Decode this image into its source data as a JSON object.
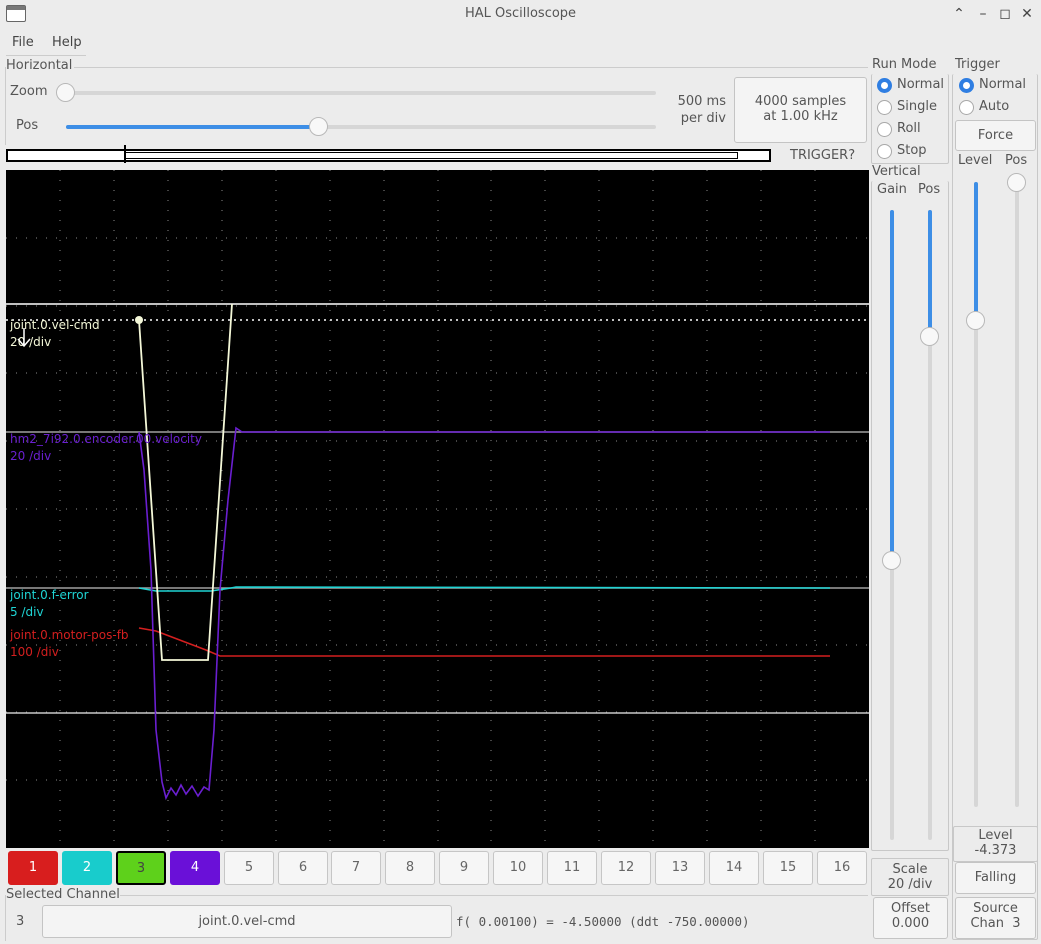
{
  "window": {
    "title": "HAL Oscilloscope"
  },
  "menu": {
    "file": "File",
    "help": "Help"
  },
  "horizontal": {
    "group_label": "Horizontal",
    "zoom_label": "Zoom",
    "pos_label": "Pos",
    "zoom_level": 0.0,
    "pos_level": 0.5,
    "scale_line1": "500 ms",
    "scale_line2": "per div",
    "samples_line1": "4000 samples",
    "samples_line2": "at 1.00 kHz",
    "trigger_status": "TRIGGER?"
  },
  "run_mode": {
    "label": "Run Mode",
    "options": [
      "Normal",
      "Single",
      "Roll",
      "Stop"
    ],
    "selected": "Normal"
  },
  "trigger": {
    "label": "Trigger",
    "options": [
      "Normal",
      "Auto"
    ],
    "selected": "Normal",
    "force_label": "Force",
    "level_label": "Level",
    "pos_label": "Pos",
    "level_value_label": "Level",
    "level_value": "-4.373",
    "edge_label": "Falling",
    "source_line1": "Source",
    "source_line2": "Chan  3"
  },
  "vertical": {
    "label": "Vertical",
    "gain_label": "Gain",
    "pos_label": "Pos",
    "scale_line1": "Scale",
    "scale_line2": "20 /div",
    "offset_line1": "Offset",
    "offset_line2": "0.000"
  },
  "traces": [
    {
      "name": "joint.0.vel-cmd",
      "scale": "20 /div",
      "color": "#f4f8d8"
    },
    {
      "name": "hm2_7i92.0.encoder.00.velocity",
      "scale": "20 /div",
      "color": "#6a1fd0"
    },
    {
      "name": "joint.0.f-error",
      "scale": "5 /div",
      "color": "#1fd4d4"
    },
    {
      "name": "joint.0.motor-pos-fb",
      "scale": "100 /div",
      "color": "#d41f1f"
    }
  ],
  "channels": [
    {
      "label": "1",
      "color": "#d81e1e"
    },
    {
      "label": "2",
      "color": "#18cccc"
    },
    {
      "label": "3",
      "color": "#5ed11b"
    },
    {
      "label": "4",
      "color": "#6a10d8"
    },
    {
      "label": "5"
    },
    {
      "label": "6"
    },
    {
      "label": "7"
    },
    {
      "label": "8"
    },
    {
      "label": "9"
    },
    {
      "label": "10"
    },
    {
      "label": "11"
    },
    {
      "label": "12"
    },
    {
      "label": "13"
    },
    {
      "label": "14"
    },
    {
      "label": "15"
    },
    {
      "label": "16"
    }
  ],
  "selected_channel": {
    "label": "Selected Channel",
    "number": "3",
    "name": "joint.0.vel-cmd",
    "readout": "f( 0.00100) = -4.50000 (ddt -750.00000)"
  }
}
